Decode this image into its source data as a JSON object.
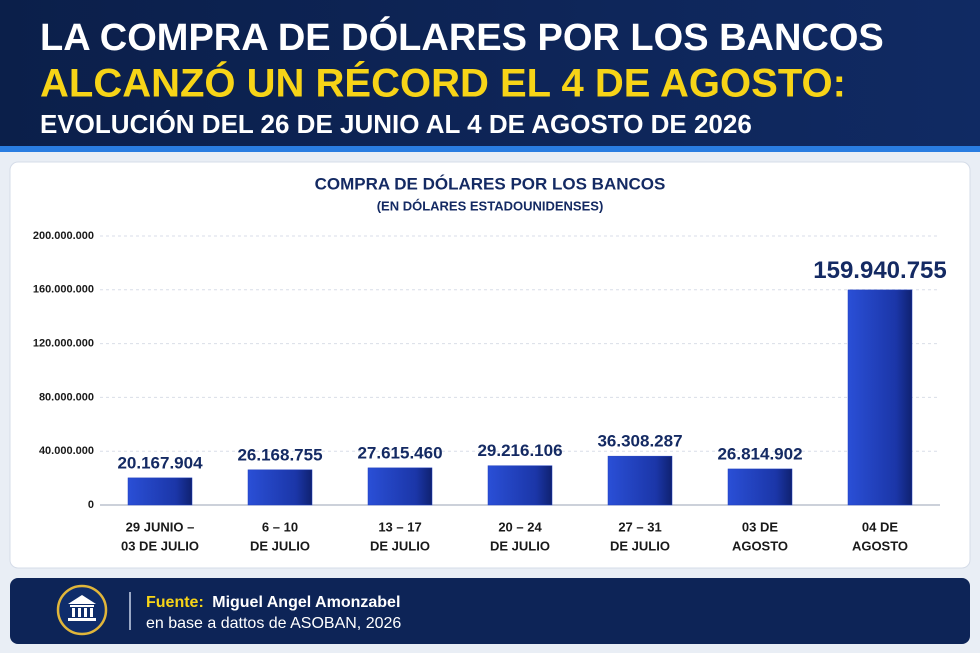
{
  "header": {
    "line1": "LA COMPRA DE DÓLARES POR LOS BANCOS",
    "line2": "ALCANZÓ UN RÉCORD EL 4 DE AGOSTO:",
    "line3": "EVOLUCIÓN DEL 26 DE JUNIO AL 4 DE AGOSTO DE 2026"
  },
  "chart_data": {
    "type": "bar",
    "title": "COMPRA DE DÓLARES POR LOS BANCOS",
    "subtitle": "(EN DÓLARES ESTADOUNIDENSES)",
    "categories": [
      [
        "29 JUNIO –",
        "03 DE JULIO"
      ],
      [
        "6 – 10",
        "DE JULIO"
      ],
      [
        "13 – 17",
        "DE JULIO"
      ],
      [
        "20 – 24",
        "DE JULIO"
      ],
      [
        "27 – 31",
        "DE JULIO"
      ],
      [
        "03 DE",
        "AGOSTO"
      ],
      [
        "04 DE",
        "AGOSTO"
      ]
    ],
    "values": [
      20167904,
      26168755,
      27615460,
      29216106,
      36308287,
      26814902,
      159940755
    ],
    "value_labels": [
      "20.167.904",
      "26.168.755",
      "27.615.460",
      "29.216.106",
      "36.308.287",
      "26.814.902",
      "159.940.755"
    ],
    "color": "#1f3fbf",
    "ylim": [
      0,
      200000000
    ],
    "yticks": [
      0,
      {
        "value": 40000000,
        "label": "40.000.000"
      },
      {
        "value": 80000000,
        "label": "80.000.000"
      },
      {
        "value": 120000000,
        "label": "120.000.000"
      },
      {
        "value": 160000000,
        "label": "160.000.000"
      },
      {
        "value": 200000000,
        "label": "200.000.000"
      }
    ],
    "grid": true
  },
  "footer": {
    "source_label": "Fuente:",
    "source_name": "Miguel Angel Amonzabel",
    "source_detail": "en base a dattos de ASOBAN, 2026"
  }
}
